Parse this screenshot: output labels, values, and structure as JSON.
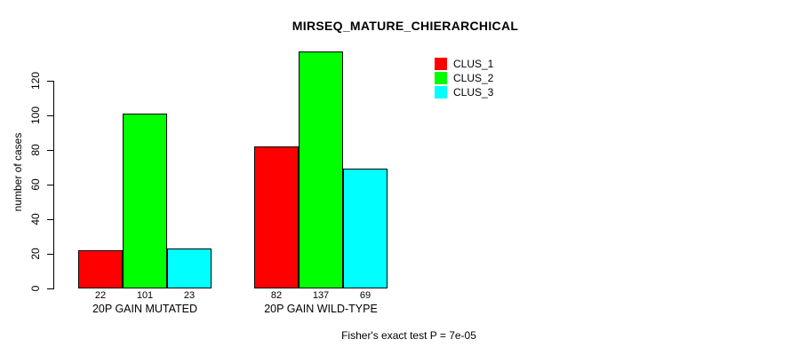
{
  "chart_data": {
    "type": "bar",
    "title": "MIRSEQ_MATURE_CHIERARCHICAL",
    "ylabel": "number of cases",
    "xlabel": "",
    "categories": [
      "20P GAIN MUTATED",
      "20P GAIN WILD-TYPE"
    ],
    "series": [
      {
        "name": "CLUS_1",
        "values": [
          22,
          82
        ]
      },
      {
        "name": "CLUS_2",
        "values": [
          101,
          137
        ]
      },
      {
        "name": "CLUS_3",
        "values": [
          23,
          69
        ]
      }
    ],
    "colors": [
      "#ff0000",
      "#00ff00",
      "#00ffff"
    ],
    "yticks": [
      0,
      20,
      40,
      60,
      80,
      100,
      120
    ],
    "ylim": [
      0,
      140
    ],
    "bar_value_labels": true,
    "grid": false,
    "legend_position": "top-right",
    "footer": "Fisher's exact test P = 7e-05"
  }
}
